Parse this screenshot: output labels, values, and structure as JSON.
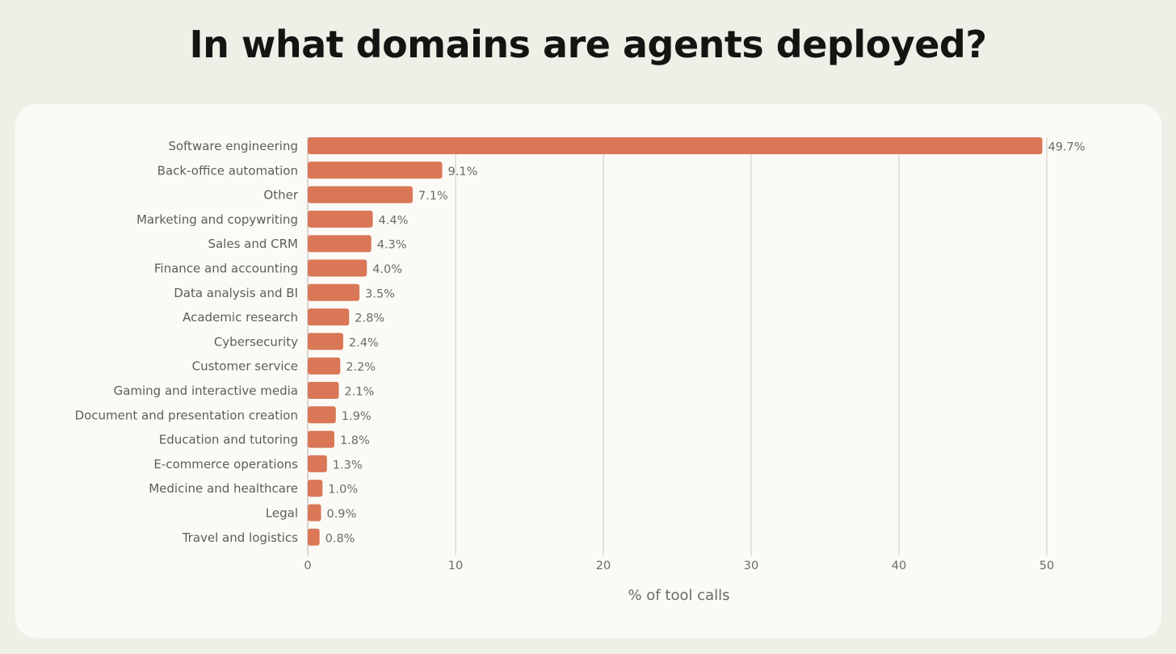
{
  "chart_data": {
    "type": "bar",
    "orientation": "horizontal",
    "title": "In what domains are agents deployed?",
    "xlabel": "% of tool calls",
    "ylabel": "",
    "xlim": [
      0,
      50
    ],
    "xticks": [
      0,
      10,
      20,
      30,
      40,
      50
    ],
    "grid": true,
    "bar_color": "#d97757",
    "categories": [
      "Software engineering",
      "Back-office automation",
      "Other",
      "Marketing and copywriting",
      "Sales and CRM",
      "Finance and accounting",
      "Data analysis and BI",
      "Academic research",
      "Cybersecurity",
      "Customer service",
      "Gaming and interactive media",
      "Document and presentation creation",
      "Education and tutoring",
      "E-commerce operations",
      "Medicine and healthcare",
      "Legal",
      "Travel and logistics"
    ],
    "values": [
      49.7,
      9.1,
      7.1,
      4.4,
      4.3,
      4.0,
      3.5,
      2.8,
      2.4,
      2.2,
      2.1,
      1.9,
      1.8,
      1.3,
      1.0,
      0.9,
      0.8
    ],
    "value_labels": [
      "49.7%",
      "9.1%",
      "7.1%",
      "4.4%",
      "4.3%",
      "4.0%",
      "3.5%",
      "2.8%",
      "2.4%",
      "2.2%",
      "2.1%",
      "1.9%",
      "1.8%",
      "1.3%",
      "1.0%",
      "0.9%",
      "0.8%"
    ]
  }
}
